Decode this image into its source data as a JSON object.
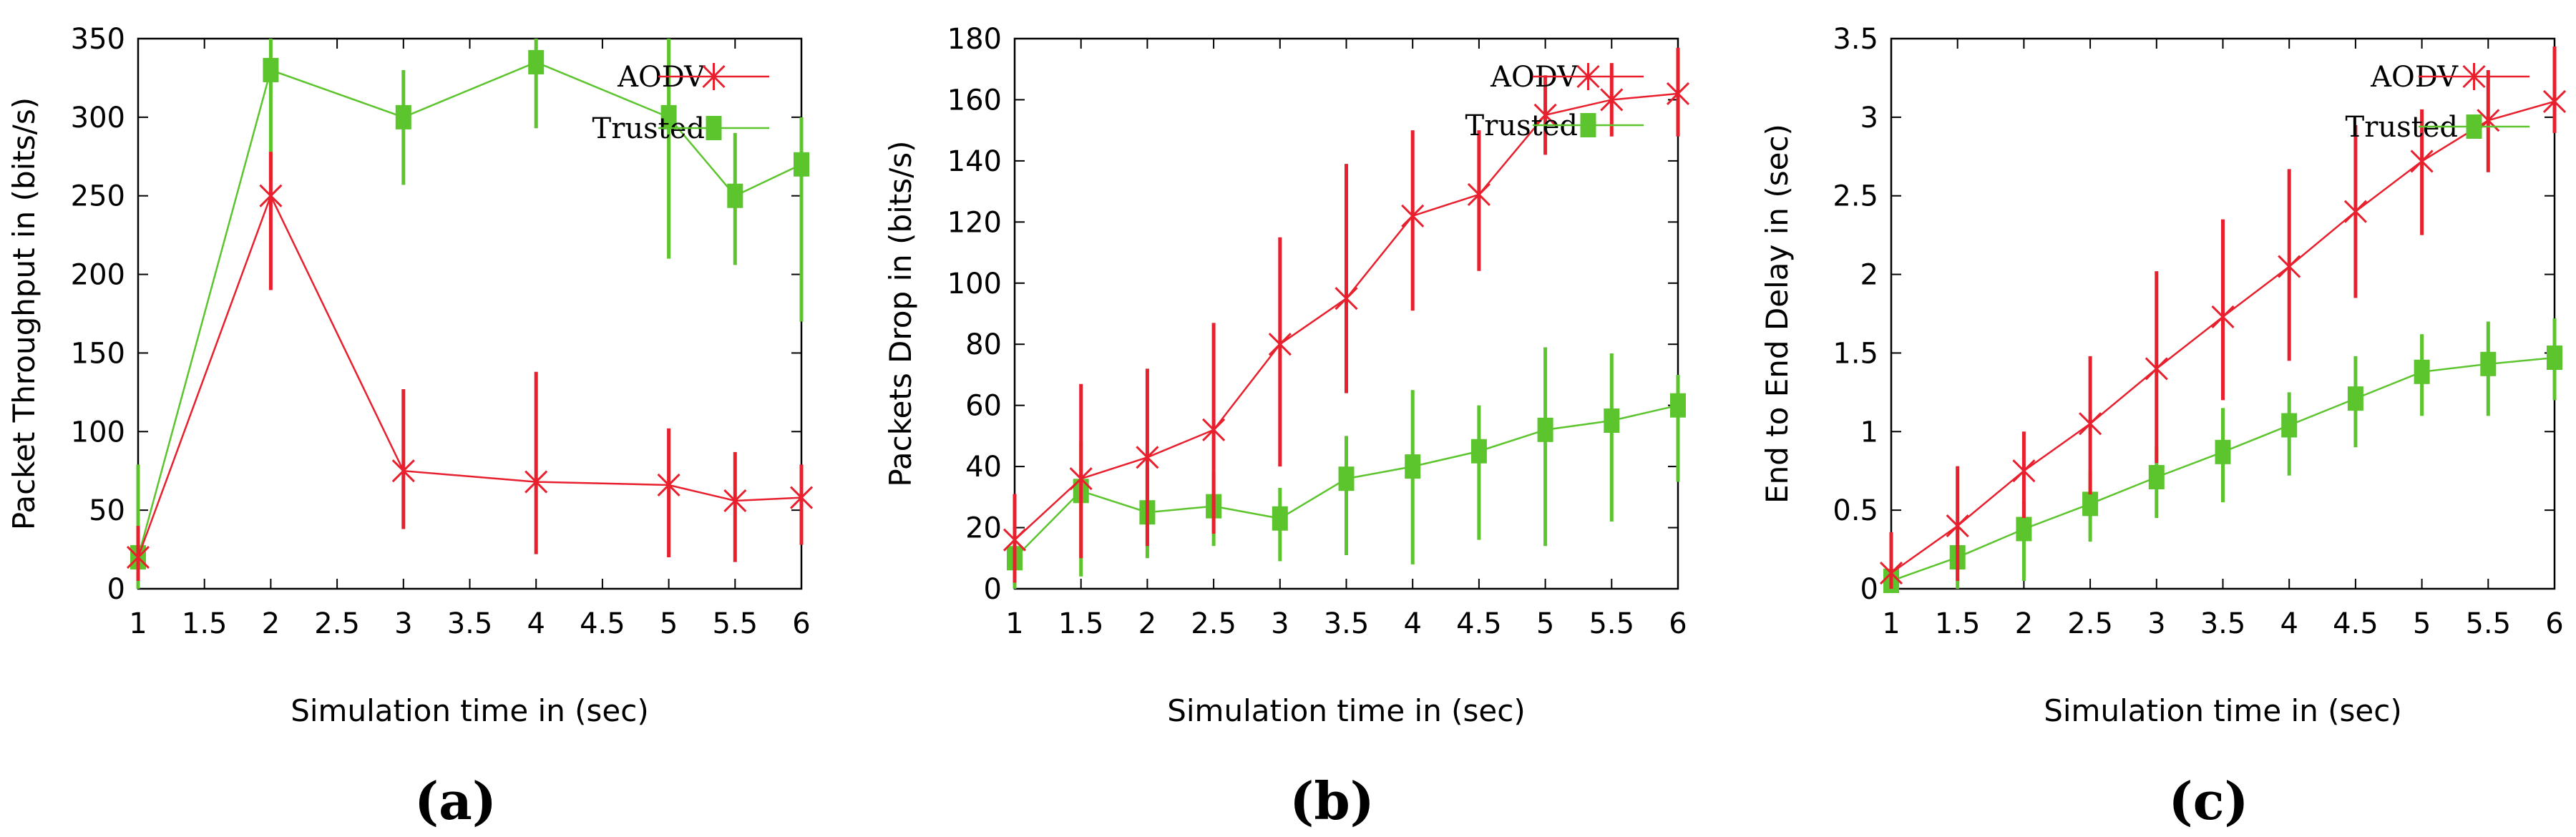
{
  "chart_data": [
    {
      "type": "line",
      "panel_label": "(a)",
      "xlabel": "Simulation time in (sec)",
      "ylabel": "Packet Throughput in (bits/s)",
      "categories": [
        "1",
        "1.5",
        "2",
        "2.5",
        "3",
        "3.5",
        "4",
        "4.5",
        "5",
        "5.5",
        "6"
      ],
      "y_ticks": [
        "0",
        "50",
        "100",
        "150",
        "200",
        "250",
        "300",
        "350"
      ],
      "ylim": [
        0,
        350
      ],
      "legend_position": "top-right",
      "series": [
        {
          "name": "AODV",
          "color": "#e8202e",
          "marker": "x",
          "points": [
            {
              "x": 1,
              "y": 20,
              "lo": 5,
              "hi": 40
            },
            {
              "x": 2,
              "y": 250,
              "lo": 190,
              "hi": 278
            },
            {
              "x": 3,
              "y": 75,
              "lo": 38,
              "hi": 127
            },
            {
              "x": 4,
              "y": 68,
              "lo": 22,
              "hi": 138
            },
            {
              "x": 5,
              "y": 66,
              "lo": 20,
              "hi": 102
            },
            {
              "x": 5.5,
              "y": 56,
              "lo": 17,
              "hi": 87
            },
            {
              "x": 6,
              "y": 58,
              "lo": 28,
              "hi": 79
            }
          ]
        },
        {
          "name": "Trusted",
          "color": "#5cc42c",
          "marker": "square",
          "points": [
            {
              "x": 1,
              "y": 20,
              "lo": 0,
              "hi": 79
            },
            {
              "x": 2,
              "y": 330,
              "lo": 260,
              "hi": 350
            },
            {
              "x": 3,
              "y": 300,
              "lo": 257,
              "hi": 330
            },
            {
              "x": 4,
              "y": 335,
              "lo": 293,
              "hi": 350
            },
            {
              "x": 5,
              "y": 300,
              "lo": 210,
              "hi": 350
            },
            {
              "x": 5.5,
              "y": 250,
              "lo": 206,
              "hi": 290
            },
            {
              "x": 6,
              "y": 270,
              "lo": 170,
              "hi": 300
            }
          ]
        }
      ]
    },
    {
      "type": "line",
      "panel_label": "(b)",
      "xlabel": "Simulation time in (sec)",
      "ylabel": "Packets Drop in (bits/s)",
      "categories": [
        "1",
        "1.5",
        "2",
        "2.5",
        "3",
        "3.5",
        "4",
        "4.5",
        "5",
        "5.5",
        "6"
      ],
      "y_ticks": [
        "0",
        "20",
        "40",
        "60",
        "80",
        "100",
        "120",
        "140",
        "160",
        "180"
      ],
      "ylim": [
        0,
        180
      ],
      "legend_position": "top-right",
      "series": [
        {
          "name": "AODV",
          "color": "#e8202e",
          "marker": "x",
          "points": [
            {
              "x": 1,
              "y": 16,
              "lo": 2,
              "hi": 31
            },
            {
              "x": 1.5,
              "y": 36,
              "lo": 10,
              "hi": 67
            },
            {
              "x": 2,
              "y": 43,
              "lo": 14,
              "hi": 72
            },
            {
              "x": 2.5,
              "y": 52,
              "lo": 18,
              "hi": 87
            },
            {
              "x": 3,
              "y": 80,
              "lo": 40,
              "hi": 115
            },
            {
              "x": 3.5,
              "y": 95,
              "lo": 64,
              "hi": 139
            },
            {
              "x": 4,
              "y": 122,
              "lo": 91,
              "hi": 150
            },
            {
              "x": 4.5,
              "y": 129,
              "lo": 104,
              "hi": 150
            },
            {
              "x": 5,
              "y": 155,
              "lo": 142,
              "hi": 168
            },
            {
              "x": 5.5,
              "y": 160,
              "lo": 148,
              "hi": 172
            },
            {
              "x": 6,
              "y": 162,
              "lo": 148,
              "hi": 177
            }
          ]
        },
        {
          "name": "Trusted",
          "color": "#5cc42c",
          "marker": "square",
          "points": [
            {
              "x": 1,
              "y": 10,
              "lo": 0,
              "hi": 24
            },
            {
              "x": 1.5,
              "y": 32,
              "lo": 4,
              "hi": 48
            },
            {
              "x": 2,
              "y": 25,
              "lo": 10,
              "hi": 40
            },
            {
              "x": 2.5,
              "y": 27,
              "lo": 14,
              "hi": 38
            },
            {
              "x": 3,
              "y": 23,
              "lo": 9,
              "hi": 33
            },
            {
              "x": 3.5,
              "y": 36,
              "lo": 11,
              "hi": 50
            },
            {
              "x": 4,
              "y": 40,
              "lo": 8,
              "hi": 65
            },
            {
              "x": 4.5,
              "y": 45,
              "lo": 16,
              "hi": 60
            },
            {
              "x": 5,
              "y": 52,
              "lo": 14,
              "hi": 79
            },
            {
              "x": 5.5,
              "y": 55,
              "lo": 22,
              "hi": 77
            },
            {
              "x": 6,
              "y": 60,
              "lo": 35,
              "hi": 70
            }
          ]
        }
      ]
    },
    {
      "type": "line",
      "panel_label": "(c)",
      "xlabel": "Simulation time in (sec)",
      "ylabel": "End to End Delay in (sec)",
      "categories": [
        "1",
        "1.5",
        "2",
        "2.5",
        "3",
        "3.5",
        "4",
        "4.5",
        "5",
        "5.5",
        "6"
      ],
      "y_ticks": [
        "0",
        "0.5",
        "1",
        "1.5",
        "2",
        "2.5",
        "3",
        "3.5"
      ],
      "ylim": [
        0,
        3.5
      ],
      "legend_position": "top-right",
      "series": [
        {
          "name": "AODV",
          "color": "#e8202e",
          "marker": "x",
          "points": [
            {
              "x": 1,
              "y": 0.1,
              "lo": 0.0,
              "hi": 0.36
            },
            {
              "x": 1.5,
              "y": 0.4,
              "lo": 0.05,
              "hi": 0.78
            },
            {
              "x": 2,
              "y": 0.75,
              "lo": 0.45,
              "hi": 1.0
            },
            {
              "x": 2.5,
              "y": 1.05,
              "lo": 0.6,
              "hi": 1.48
            },
            {
              "x": 3,
              "y": 1.4,
              "lo": 0.8,
              "hi": 2.02
            },
            {
              "x": 3.5,
              "y": 1.73,
              "lo": 1.2,
              "hi": 2.35
            },
            {
              "x": 4,
              "y": 2.05,
              "lo": 1.45,
              "hi": 2.67
            },
            {
              "x": 4.5,
              "y": 2.4,
              "lo": 1.85,
              "hi": 2.95
            },
            {
              "x": 5,
              "y": 2.72,
              "lo": 2.25,
              "hi": 3.05
            },
            {
              "x": 5.5,
              "y": 2.98,
              "lo": 2.65,
              "hi": 3.3
            },
            {
              "x": 6,
              "y": 3.1,
              "lo": 2.9,
              "hi": 3.45
            }
          ]
        },
        {
          "name": "Trusted",
          "color": "#5cc42c",
          "marker": "square",
          "points": [
            {
              "x": 1,
              "y": 0.05,
              "lo": 0.0,
              "hi": 0.18
            },
            {
              "x": 1.5,
              "y": 0.2,
              "lo": 0.0,
              "hi": 0.38
            },
            {
              "x": 2,
              "y": 0.38,
              "lo": 0.05,
              "hi": 0.55
            },
            {
              "x": 2.5,
              "y": 0.54,
              "lo": 0.3,
              "hi": 0.75
            },
            {
              "x": 3,
              "y": 0.71,
              "lo": 0.45,
              "hi": 0.9
            },
            {
              "x": 3.5,
              "y": 0.87,
              "lo": 0.55,
              "hi": 1.15
            },
            {
              "x": 4,
              "y": 1.04,
              "lo": 0.72,
              "hi": 1.25
            },
            {
              "x": 4.5,
              "y": 1.21,
              "lo": 0.9,
              "hi": 1.48
            },
            {
              "x": 5,
              "y": 1.38,
              "lo": 1.1,
              "hi": 1.62
            },
            {
              "x": 5.5,
              "y": 1.43,
              "lo": 1.1,
              "hi": 1.7
            },
            {
              "x": 6,
              "y": 1.47,
              "lo": 1.2,
              "hi": 1.72
            }
          ]
        }
      ]
    }
  ]
}
